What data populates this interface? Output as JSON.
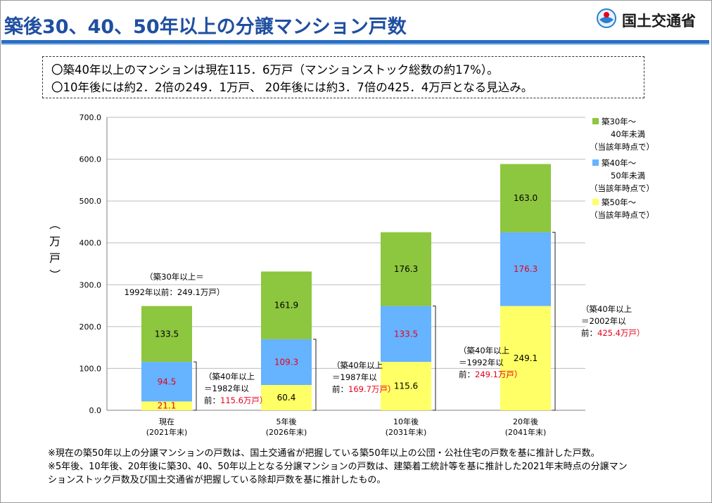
{
  "header": {
    "title": "築後30、40、50年以上の分譲マンション戸数",
    "logo_text": "国土交通省",
    "logo_icon": "mlit-logo-icon"
  },
  "summary": [
    "〇築40年以上のマンションは現在115．6万戸（マンションストック総数の約17%）。",
    "〇10年後には約2．2倍の249．1万戸、 20年後には約3．7倍の425．4万戸となる見込み。"
  ],
  "notes": [
    "※現在の築50年以上の分譲マンションの戸数は、国土交通省が把握している築50年以上の公団・公社住宅の戸数を基に推計した戸数。",
    "※5年後、10年後、20年後に築30、40、50年以上となる分譲マンションの戸数は、建築着工統計等を基に推計した2021年末時点の分譲マン",
    "ションストック戸数及び国土交通省が把握している除却戸数を基に推計したもの。"
  ],
  "chart_data": {
    "type": "bar",
    "stacked": true,
    "ylabel": "（万戸）",
    "ylim": [
      0,
      700
    ],
    "yticks": [
      "0.0",
      "100.0",
      "200.0",
      "300.0",
      "400.0",
      "500.0",
      "600.0",
      "700.0"
    ],
    "grid": true,
    "legend_position": "right",
    "categories": [
      [
        "現在",
        "(2021年末)"
      ],
      [
        "5年後",
        "(2026年末)"
      ],
      [
        "10年後",
        "(2031年末)"
      ],
      [
        "20年後",
        "(2041年末)"
      ]
    ],
    "series": [
      {
        "name": "築50年～（当該年時点で）",
        "legend_lines": [
          "築50年～",
          "（当該年時点で）"
        ],
        "color": "#ffff66",
        "values": [
          21.1,
          60.4,
          115.6,
          249.1
        ],
        "labels": [
          "21.1",
          "60.4",
          "115.6",
          "249.1"
        ],
        "label_colors": [
          "#e8001c",
          "#000000",
          "#000000",
          "#000000"
        ]
      },
      {
        "name": "築40年～50年未満（当該年時点で）",
        "legend_lines": [
          "築40年～",
          "50年未満",
          "（当該年時点で）"
        ],
        "color": "#66b3ff",
        "values": [
          94.5,
          109.3,
          133.5,
          176.3
        ],
        "labels": [
          "94.5",
          "109.3",
          "133.5",
          "176.3"
        ],
        "label_colors": [
          "#e8001c",
          "#e8001c",
          "#e8001c",
          "#e8001c"
        ]
      },
      {
        "name": "築30年～40年未満（当該年時点で）",
        "legend_lines": [
          "築30年～",
          "40年未満",
          "（当該年時点で）"
        ],
        "color": "#8dc63f",
        "values": [
          133.5,
          161.9,
          176.3,
          163.0
        ],
        "labels": [
          "133.5",
          "161.9",
          "176.3",
          "163.0"
        ],
        "label_colors": [
          "#000000",
          "#000000",
          "#000000",
          "#000000"
        ]
      }
    ],
    "annotations": [
      {
        "lines": [
          [
            "（築30年以上＝",
            ""
          ],
          [
            "1992年以前：249.1万戸）",
            ""
          ]
        ],
        "target": "現在 築30年以上"
      },
      {
        "lines": [
          [
            "（築40年以上",
            ""
          ],
          [
            "＝1982年以",
            ""
          ],
          [
            "前：",
            "115.6万戸）"
          ]
        ],
        "target": "現在 築40年以上"
      },
      {
        "lines": [
          [
            "（築40年以上",
            ""
          ],
          [
            "＝1987年以",
            ""
          ],
          [
            "前：",
            "169.7万戸）"
          ]
        ],
        "target": "5年後 築40年以上"
      },
      {
        "lines": [
          [
            "（築40年以上",
            ""
          ],
          [
            "＝1992年以",
            ""
          ],
          [
            "前：",
            "249.1万戸）"
          ]
        ],
        "target": "10年後 築40年以上"
      },
      {
        "lines": [
          [
            "（築40年以上",
            ""
          ],
          [
            "＝2002年以",
            ""
          ],
          [
            "前：",
            "425.4万戸）"
          ]
        ],
        "target": "20年後 築40年以上"
      }
    ],
    "annotation_highlight_color": "#e8001c"
  }
}
